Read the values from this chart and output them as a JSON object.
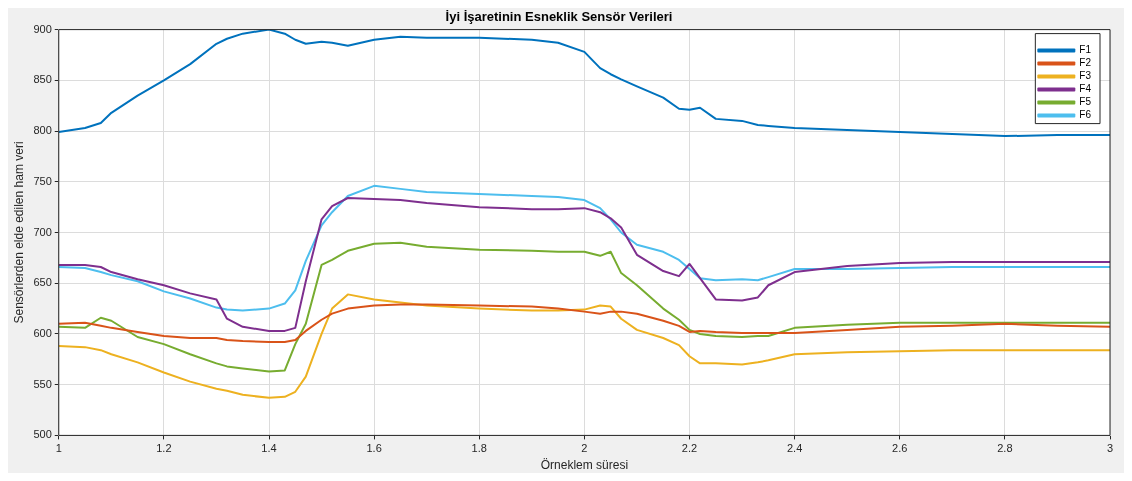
{
  "chart_data": {
    "type": "line",
    "title": "İyi İşaretinin Esneklik Sensör Verileri",
    "xlabel": "Örneklem süresi",
    "ylabel": "Sensörlerden elde edilen ham veri",
    "x": [
      1.0,
      1.05,
      1.08,
      1.1,
      1.15,
      1.2,
      1.25,
      1.3,
      1.32,
      1.35,
      1.4,
      1.43,
      1.45,
      1.47,
      1.5,
      1.52,
      1.55,
      1.6,
      1.65,
      1.7,
      1.8,
      1.9,
      1.95,
      2.0,
      2.03,
      2.05,
      2.07,
      2.1,
      2.15,
      2.18,
      2.2,
      2.22,
      2.25,
      2.3,
      2.33,
      2.35,
      2.4,
      2.5,
      2.6,
      2.7,
      2.8,
      2.9,
      3.0
    ],
    "series": [
      {
        "name": "F1",
        "color": "#0072bd",
        "values": [
          799,
          803,
          808,
          818,
          835,
          850,
          866,
          886,
          891,
          896,
          900,
          896,
          890,
          886,
          888,
          887,
          884,
          890,
          893,
          892,
          892,
          890,
          887,
          878,
          862,
          856,
          851,
          844,
          833,
          822,
          821,
          823,
          812,
          810,
          806,
          805,
          803,
          801,
          799,
          797,
          795,
          796,
          796
        ]
      },
      {
        "name": "F2",
        "color": "#d95319",
        "values": [
          610,
          611,
          608,
          606,
          602,
          598,
          596,
          596,
          594,
          593,
          592,
          592,
          594,
          603,
          614,
          620,
          625,
          628,
          629,
          629,
          628,
          627,
          625,
          622,
          620,
          622,
          622,
          620,
          613,
          608,
          602,
          603,
          602,
          601,
          601,
          601,
          601,
          604,
          607,
          608,
          610,
          608,
          607
        ]
      },
      {
        "name": "F3",
        "color": "#edb120",
        "values": [
          588,
          587,
          584,
          580,
          572,
          562,
          553,
          546,
          544,
          540,
          537,
          538,
          543,
          558,
          600,
          625,
          639,
          634,
          631,
          628,
          625,
          623,
          623,
          624,
          628,
          627,
          615,
          604,
          596,
          589,
          578,
          571,
          571,
          570,
          572,
          574,
          580,
          582,
          583,
          584,
          584,
          584,
          584
        ]
      },
      {
        "name": "F4",
        "color": "#7e2f8e",
        "values": [
          668,
          668,
          666,
          661,
          654,
          648,
          640,
          634,
          615,
          607,
          603,
          603,
          606,
          652,
          713,
          726,
          734,
          733,
          732,
          729,
          725,
          723,
          723,
          724,
          720,
          714,
          705,
          678,
          662,
          657,
          669,
          655,
          634,
          633,
          636,
          648,
          661,
          667,
          670,
          671,
          671,
          671,
          671
        ]
      },
      {
        "name": "F5",
        "color": "#77ac30",
        "values": [
          607,
          606,
          616,
          613,
          597,
          590,
          580,
          571,
          568,
          566,
          563,
          564,
          590,
          610,
          668,
          673,
          682,
          689,
          690,
          686,
          683,
          682,
          681,
          681,
          677,
          681,
          660,
          648,
          625,
          614,
          604,
          600,
          598,
          597,
          598,
          598,
          606,
          609,
          611,
          611,
          611,
          611,
          611
        ]
      },
      {
        "name": "F6",
        "color": "#4dbeee",
        "values": [
          666,
          665,
          661,
          658,
          652,
          642,
          635,
          626,
          624,
          623,
          625,
          630,
          643,
          672,
          707,
          720,
          736,
          746,
          743,
          740,
          738,
          736,
          735,
          732,
          724,
          713,
          700,
          688,
          681,
          673,
          664,
          655,
          653,
          654,
          653,
          656,
          664,
          664,
          665,
          666,
          666,
          666,
          666
        ]
      }
    ],
    "xlim": [
      1,
      3
    ],
    "xticks": [
      1,
      1.2,
      1.4,
      1.6,
      1.8,
      2,
      2.2,
      2.4,
      2.6,
      2.8,
      3
    ],
    "ylim": [
      500,
      900
    ],
    "yticks": [
      500,
      550,
      600,
      650,
      700,
      750,
      800,
      850,
      900
    ],
    "grid": true,
    "legend": "top right",
    "marker": "none",
    "line_style": "solid"
  }
}
